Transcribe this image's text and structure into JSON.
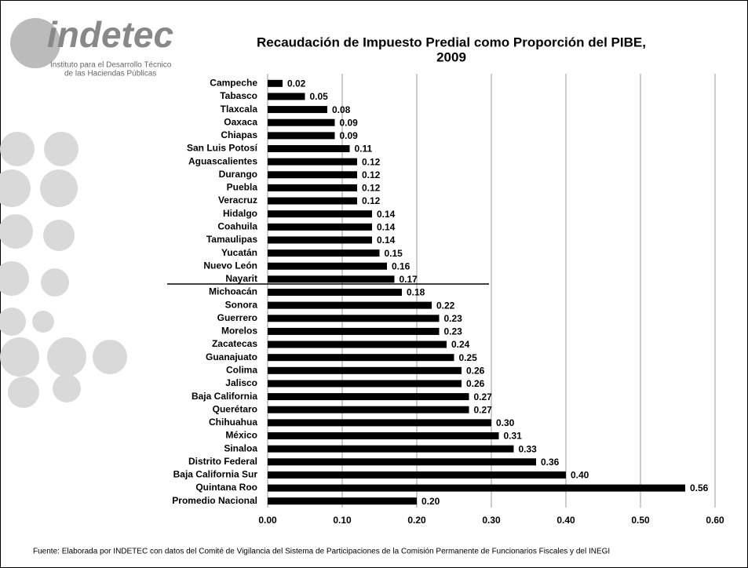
{
  "chart_data": {
    "type": "bar",
    "orientation": "horizontal",
    "title": [
      "Recaudación de Impuesto Predial como Proporción del PIBE,",
      "2009"
    ],
    "logo": {
      "name": "indetec",
      "line1": "Instituto para el Desarrollo Técnico",
      "line2": "de las Haciendas Públicas"
    },
    "source": "Fuente: Elaborada por INDETEC con datos del Comité de Vigilancia del Sistema de Participaciones de la Comisión Permanente de Funcionarios Fiscales y del INEGI",
    "categories": [
      "Campeche",
      "Tabasco",
      "Tlaxcala",
      "Oaxaca",
      "Chiapas",
      "San Luis Potosí",
      "Aguascalientes",
      "Durango",
      "Puebla",
      "Veracruz",
      "Hidalgo",
      "Coahuila",
      "Tamaulipas",
      "Yucatán",
      "Nuevo León",
      "Nayarit",
      "Michoacán",
      "Sonora",
      "Guerrero",
      "Morelos",
      "Zacatecas",
      "Guanajuato",
      "Colima",
      "Jalisco",
      "Baja California",
      "Querétaro",
      "Chihuahua",
      "México",
      "Sinaloa",
      "Distrito Federal",
      "Baja California Sur",
      "Quintana Roo",
      "Promedio Nacional"
    ],
    "values": [
      0.02,
      0.05,
      0.08,
      0.09,
      0.09,
      0.11,
      0.12,
      0.12,
      0.12,
      0.12,
      0.14,
      0.14,
      0.14,
      0.15,
      0.16,
      0.17,
      0.18,
      0.22,
      0.23,
      0.23,
      0.24,
      0.25,
      0.26,
      0.26,
      0.27,
      0.27,
      0.3,
      0.31,
      0.33,
      0.36,
      0.4,
      0.56,
      0.2
    ],
    "value_labels": [
      "0.02",
      "0.05",
      "0.08",
      "0.09",
      "0.09",
      "0.11",
      "0.12",
      "0.12",
      "0.12",
      "0.12",
      "0.14",
      "0.14",
      "0.14",
      "0.15",
      "0.16",
      "0.17",
      "0.18",
      "0.22",
      "0.23",
      "0.23",
      "0.24",
      "0.25",
      "0.26",
      "0.26",
      "0.27",
      "0.27",
      "0.30",
      "0.31",
      "0.33",
      "0.36",
      "0.40",
      "0.56",
      "0.20"
    ],
    "color": "#000000",
    "xlim": [
      0,
      0.6
    ],
    "xticks": [
      {
        "value": 0,
        "label": "0.00"
      },
      {
        "value": 0.1,
        "label": "0.10"
      },
      {
        "value": 0.2,
        "label": "0.20"
      },
      {
        "value": 0.3,
        "label": "0.30"
      },
      {
        "value": 0.4,
        "label": "0.40"
      },
      {
        "value": 0.5,
        "label": "0.50"
      },
      {
        "value": 0.6,
        "label": "0.60"
      }
    ],
    "grid": true
  }
}
